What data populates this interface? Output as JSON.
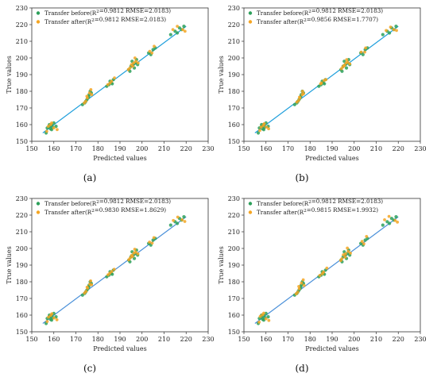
{
  "colors": {
    "before_points": "#2ca05a",
    "after_points": "#f5a623",
    "fit_line_a": "#1f9fdc",
    "fit_line_b": "#1f9fdc",
    "fit_line_c": "#4a90d9",
    "fit_line_d": "#4a90d9"
  },
  "chart_data": [
    {
      "type": "scatter",
      "panel_label": "(a)",
      "xlabel": "Predicted values",
      "ylabel": "True values",
      "xlim": [
        150,
        230
      ],
      "ylim": [
        150,
        230
      ],
      "xticks": [
        "150",
        "160",
        "170",
        "180",
        "190",
        "200",
        "210",
        "220",
        "230"
      ],
      "yticks": [
        "150",
        "160",
        "170",
        "180",
        "190",
        "200",
        "210",
        "220",
        "230"
      ],
      "legend": [
        "Transfer before(R²=0.9812 RMSE=2.0183)",
        "Transfer after(R²=0.9812 RMSE=2.0183)"
      ],
      "legend_position": "top-left",
      "fit_line": {
        "x": [
          155,
          220
        ],
        "y": [
          155,
          219
        ]
      },
      "series": [
        {
          "x": [
            157,
            158,
            159,
            159.5,
            160,
            158.5,
            156.5,
            159,
            161,
            158,
            174,
            175,
            175.5,
            176,
            174.5,
            173,
            177,
            175.8,
            176.5,
            185,
            186,
            185.5,
            184,
            187,
            186.5,
            194,
            195,
            196,
            197,
            196.5,
            195.5,
            194.5,
            198,
            197.5,
            203,
            204,
            205,
            206,
            215,
            217,
            218,
            219,
            216,
            213
          ],
          "y": [
            158,
            159,
            160,
            158.5,
            161,
            157.5,
            155,
            157,
            159,
            160,
            173,
            175,
            176,
            178,
            174,
            172,
            179,
            177,
            180,
            184,
            185,
            186,
            183,
            187,
            184.5,
            193,
            195,
            196,
            197,
            194,
            198,
            192,
            196,
            199,
            203,
            202,
            205,
            206,
            216,
            218,
            217,
            219,
            215,
            214
          ]
        },
        {
          "x": [
            157.5,
            158.5,
            160,
            159,
            161.5,
            156.8,
            174.5,
            175.2,
            176.2,
            175,
            173.8,
            177.2,
            176.8,
            185.5,
            186.2,
            184.5,
            187.5,
            194.5,
            195.2,
            196.2,
            197.2,
            195.8,
            196.8,
            193.8,
            198.2,
            203.5,
            204.5,
            205.5,
            214,
            216,
            218.5,
            219.5
          ],
          "y": [
            159,
            160,
            158,
            161,
            157,
            156,
            174,
            176,
            179,
            177,
            173,
            178,
            181,
            185,
            186,
            184,
            188,
            194,
            196,
            197,
            198,
            195,
            200,
            193,
            197,
            204,
            203,
            207,
            217,
            219,
            217,
            216
          ]
        }
      ]
    },
    {
      "type": "scatter",
      "panel_label": "(b)",
      "xlabel": "Predicted values",
      "ylabel": "True values",
      "xlim": [
        150,
        230
      ],
      "ylim": [
        150,
        230
      ],
      "xticks": [
        "150",
        "160",
        "170",
        "180",
        "190",
        "200",
        "210",
        "220",
        "230"
      ],
      "yticks": [
        "150",
        "160",
        "170",
        "180",
        "190",
        "200",
        "210",
        "220",
        "230"
      ],
      "legend": [
        "Transfer before(R²=0.9812 RMSE=2.0183)",
        "Transfer after(R²=0.9856 RMSE=1.7707)"
      ],
      "legend_position": "top-left",
      "fit_line": {
        "x": [
          155,
          220
        ],
        "y": [
          155,
          219
        ]
      },
      "series": [
        {
          "x": [
            157,
            158,
            159,
            159.5,
            160,
            158.5,
            156.5,
            159,
            161,
            158,
            174,
            175,
            175.5,
            176,
            174.5,
            173,
            177,
            175.8,
            176.5,
            185,
            186,
            185.5,
            184,
            187,
            186.5,
            194,
            195,
            196,
            197,
            196.5,
            195.5,
            194.5,
            198,
            197.5,
            203,
            204,
            205,
            206,
            215,
            217,
            218,
            219,
            216,
            213
          ],
          "y": [
            158,
            159,
            160,
            158.5,
            161,
            157.5,
            155,
            157,
            159,
            160,
            173,
            175,
            176,
            178,
            174,
            172,
            179,
            177,
            180,
            184,
            185,
            186,
            183,
            187,
            184.5,
            193,
            195,
            196,
            197,
            194,
            198,
            192,
            196,
            199,
            203,
            202,
            205,
            206,
            216,
            218,
            217,
            219,
            215,
            214
          ]
        },
        {
          "x": [
            157.8,
            158.8,
            160.2,
            159.2,
            161.2,
            157.2,
            174.8,
            175.4,
            176.4,
            175.2,
            174,
            177,
            176.6,
            185.2,
            186.4,
            184.8,
            187.2,
            194.8,
            195.4,
            196.4,
            197,
            195.6,
            196.6,
            194.2,
            198,
            203.2,
            204.8,
            205.2,
            214.5,
            216.5,
            218,
            219.2
          ],
          "y": [
            158.5,
            159.5,
            158.5,
            160.5,
            157.5,
            156.5,
            174.5,
            176,
            178,
            176.5,
            173.5,
            178.5,
            180,
            185,
            186.5,
            184.5,
            187,
            194.5,
            195.5,
            197,
            197.5,
            195.5,
            199,
            193.5,
            196.5,
            203.5,
            203.5,
            206,
            216.5,
            218.5,
            217,
            216.5
          ]
        }
      ]
    },
    {
      "type": "scatter",
      "panel_label": "(c)",
      "xlabel": "Predicted values",
      "ylabel": "True values",
      "xlim": [
        150,
        230
      ],
      "ylim": [
        150,
        230
      ],
      "xticks": [
        "150",
        "160",
        "170",
        "180",
        "190",
        "200",
        "210",
        "220",
        "230"
      ],
      "yticks": [
        "150",
        "160",
        "170",
        "180",
        "190",
        "200",
        "210",
        "220",
        "230"
      ],
      "legend": [
        "Transfer before(R²=0.9812 RMSE=2.0183)",
        "Transfer after(R²=0.9830 RMSE=1.8629)"
      ],
      "legend_position": "top-left",
      "fit_line": {
        "x": [
          155,
          220
        ],
        "y": [
          155,
          219
        ]
      },
      "series": [
        {
          "x": [
            157,
            158,
            159,
            159.5,
            160,
            158.5,
            156.5,
            159,
            161,
            158,
            174,
            175,
            175.5,
            176,
            174.5,
            173,
            177,
            175.8,
            176.5,
            185,
            186,
            185.5,
            184,
            187,
            186.5,
            194,
            195,
            196,
            197,
            196.5,
            195.5,
            194.5,
            198,
            197.5,
            203,
            204,
            205,
            206,
            215,
            217,
            218,
            219,
            216,
            213
          ],
          "y": [
            158,
            159,
            160,
            158.5,
            161,
            157.5,
            155,
            157,
            159,
            160,
            173,
            175,
            176,
            178,
            174,
            172,
            179,
            177,
            180,
            184,
            185,
            186,
            183,
            187,
            184.5,
            193,
            195,
            196,
            197,
            194,
            198,
            192,
            196,
            199,
            203,
            202,
            205,
            206,
            216,
            218,
            217,
            219,
            215,
            214
          ]
        },
        {
          "x": [
            157.6,
            158.6,
            160.1,
            159.1,
            161.4,
            157,
            174.6,
            175.3,
            176.3,
            175.1,
            173.9,
            177.1,
            176.7,
            185.4,
            186.3,
            184.6,
            187.4,
            194.6,
            195.3,
            196.3,
            197.1,
            195.7,
            196.7,
            194,
            198.1,
            203.4,
            204.6,
            205.4,
            214.2,
            216.2,
            218.2,
            219.4
          ],
          "y": [
            158.8,
            159.8,
            158.2,
            160.8,
            157.2,
            156.2,
            174.2,
            176.2,
            178.5,
            176.8,
            173.2,
            178.2,
            180.5,
            185.2,
            186.2,
            184.2,
            187.5,
            194.2,
            195.8,
            197.2,
            197.8,
            195.2,
            199.5,
            193.2,
            196.8,
            203.8,
            203.2,
            206.5,
            216.8,
            218.8,
            217.2,
            216.2
          ]
        }
      ]
    },
    {
      "type": "scatter",
      "panel_label": "(d)",
      "xlabel": "Predicted values",
      "ylabel": "True values",
      "xlim": [
        150,
        230
      ],
      "ylim": [
        150,
        230
      ],
      "xticks": [
        "150",
        "160",
        "170",
        "180",
        "190",
        "200",
        "210",
        "220",
        "230"
      ],
      "yticks": [
        "150",
        "160",
        "170",
        "180",
        "190",
        "200",
        "210",
        "220",
        "230"
      ],
      "legend": [
        "Transfer before(R²=0.9812 RMSE=2.0183)",
        "Transfer after(R²=0.9815 RMSE=1.9932)"
      ],
      "legend_position": "top-left",
      "fit_line": {
        "x": [
          155,
          220
        ],
        "y": [
          155,
          219
        ]
      },
      "series": [
        {
          "x": [
            157,
            158,
            159,
            159.5,
            160,
            158.5,
            156.5,
            159,
            161,
            158,
            174,
            175,
            175.5,
            176,
            174.5,
            173,
            177,
            175.8,
            176.5,
            185,
            186,
            185.5,
            184,
            187,
            186.5,
            194,
            195,
            196,
            197,
            196.5,
            195.5,
            194.5,
            198,
            197.5,
            203,
            204,
            205,
            206,
            215,
            217,
            218,
            219,
            216,
            213
          ],
          "y": [
            158,
            159,
            160,
            158.5,
            161,
            157.5,
            155,
            157,
            159,
            160,
            173,
            175,
            176,
            178,
            174,
            172,
            179,
            177,
            180,
            184,
            185,
            186,
            183,
            187,
            184.5,
            193,
            195,
            196,
            197,
            194,
            198,
            192,
            196,
            199,
            203,
            202,
            205,
            206,
            216,
            218,
            217,
            219,
            215,
            214
          ]
        },
        {
          "x": [
            157.4,
            158.4,
            160,
            159,
            161.3,
            156.9,
            174.4,
            175.1,
            176.1,
            174.9,
            173.7,
            177.3,
            176.9,
            185.6,
            186.1,
            184.4,
            187.6,
            194.4,
            195.1,
            196.1,
            197.3,
            195.9,
            196.9,
            193.9,
            198.3,
            203.6,
            204.4,
            205.6,
            213.8,
            215.8,
            218.6,
            219.6
          ],
          "y": [
            159.2,
            160.2,
            157.8,
            161.2,
            156.8,
            155.8,
            173.8,
            175.8,
            179.2,
            177.2,
            172.8,
            177.8,
            181.2,
            184.8,
            185.8,
            183.8,
            188.2,
            193.8,
            196.2,
            196.8,
            198.2,
            194.8,
            200.2,
            192.8,
            197.2,
            204.2,
            202.8,
            207.2,
            217.2,
            219.2,
            216.8,
            215.8
          ]
        }
      ]
    }
  ]
}
